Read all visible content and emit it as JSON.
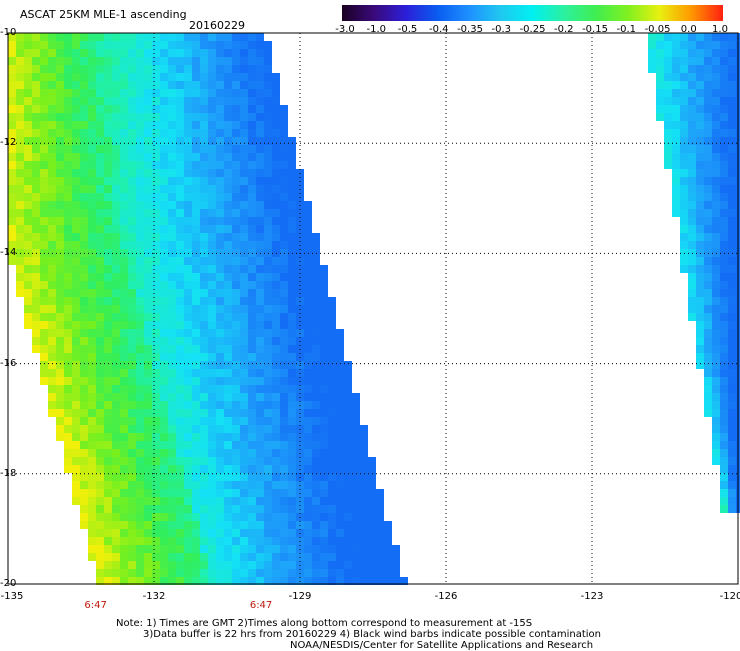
{
  "header": {
    "title": "ASCAT 25KM MLE-1 ascending",
    "date": "20160229"
  },
  "colorbar": {
    "labels": [
      "-3.0",
      "-1.0",
      "-0.5",
      "-0.4",
      "-0.35",
      "-0.3",
      "-0.25",
      "-0.2",
      "-0.15",
      "-0.1",
      "-0.05",
      "0.0",
      "1.0"
    ],
    "colors": [
      "#1a0022",
      "#3a0a7a",
      "#2c1ed8",
      "#0a5cf0",
      "#1e90ff",
      "#20c8f0",
      "#00f0f0",
      "#2cf0a0",
      "#40ee50",
      "#80f020",
      "#e8f010",
      "#ff9800",
      "#ff2010"
    ]
  },
  "map": {
    "lat_labels": [
      "-10",
      "-12",
      "-14",
      "-16",
      "-18",
      "-20"
    ],
    "lon_labels": [
      "-135",
      "-132",
      "-129",
      "-126",
      "-123",
      "-120"
    ],
    "lat_values": [
      -10,
      -12,
      -14,
      -16,
      -18,
      -20
    ],
    "lon_values": [
      -135,
      -132,
      -129,
      -126,
      -123,
      -120
    ],
    "times": [
      {
        "label": "6:47",
        "lon": -133.2
      },
      {
        "label": "6:47",
        "lon": -129.8
      }
    ]
  },
  "notes": {
    "line1": "Note: 1) Times are GMT 2)Times along bottom correspond to measurement at -15S",
    "line2": "3)Data buffer is 22 hrs from 20160229 4) Black wind barbs indicate possible contamination",
    "line3": "NOAA/NESDIS/Center for Satellite Applications and Research"
  }
}
